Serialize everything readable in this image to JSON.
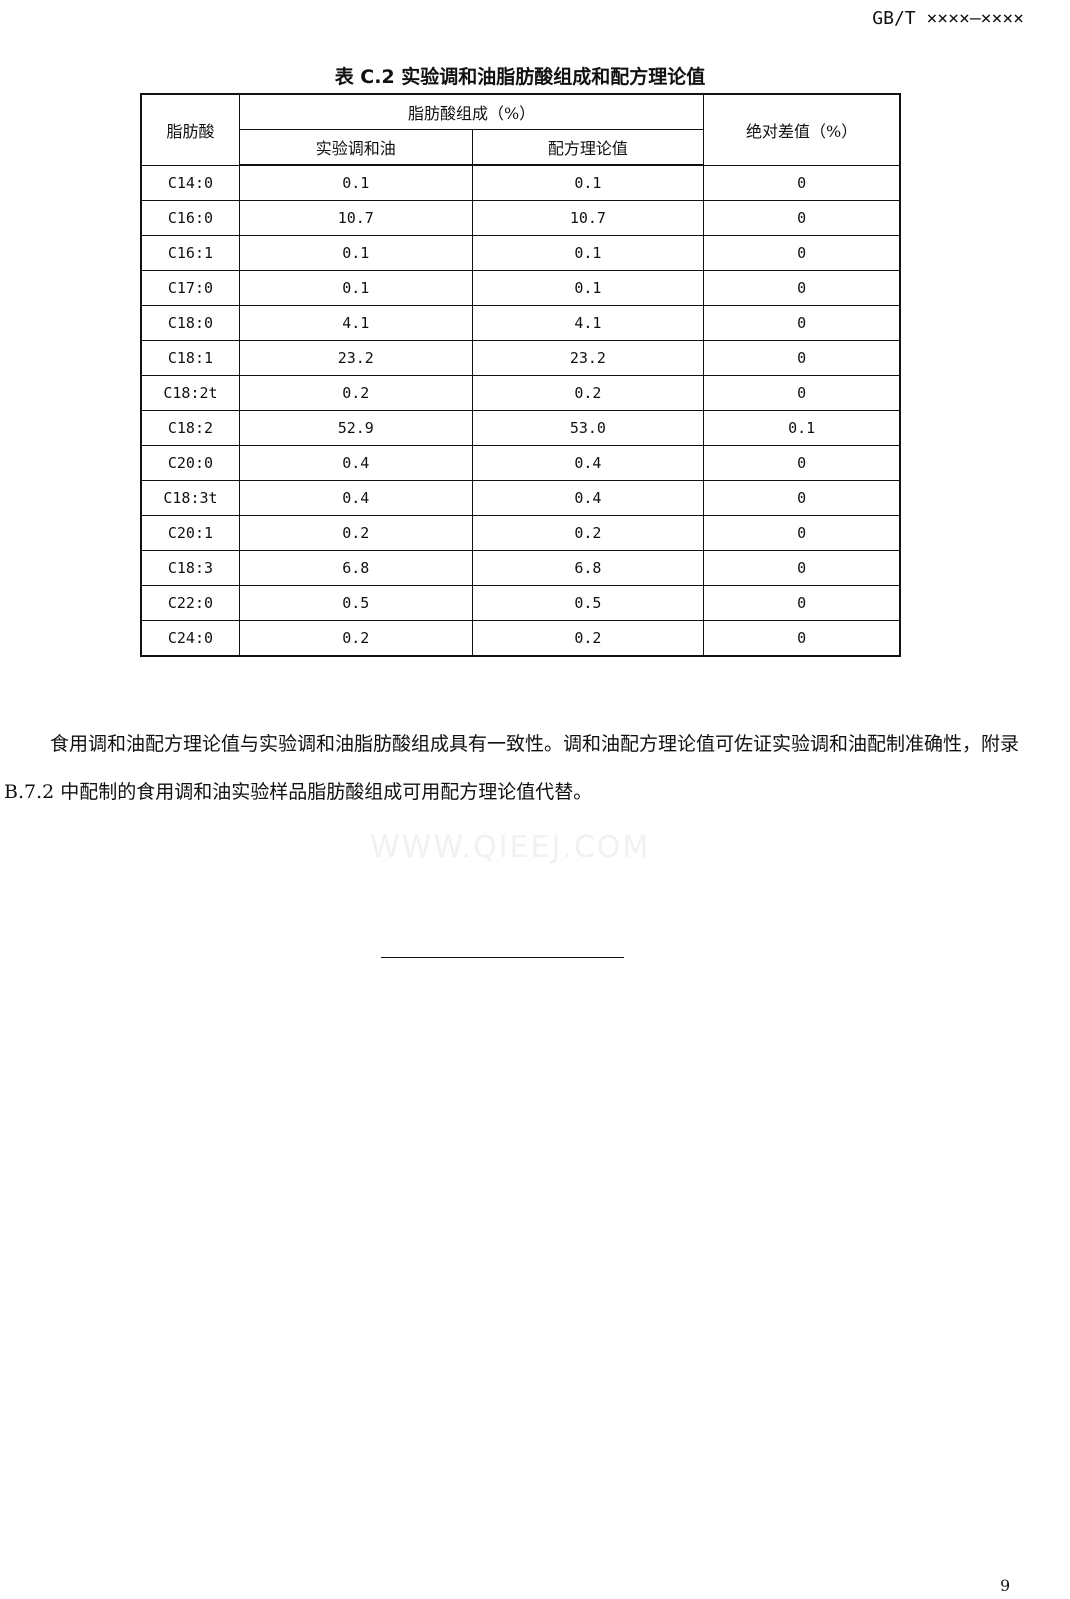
{
  "header": {
    "code": "GB/T ××××—××××"
  },
  "table": {
    "title": "表 C.2 实验调和油脂肪酸组成和配方理论值",
    "headers": {
      "fatty_acid": "脂肪酸",
      "composition": "脂肪酸组成（%）",
      "experimental": "实验调和油",
      "theoretical": "配方理论值",
      "abs_diff": "绝对差值（%）"
    },
    "rows": [
      [
        "C14:0",
        "0.1",
        "0.1",
        "0"
      ],
      [
        "C16:0",
        "10.7",
        "10.7",
        "0"
      ],
      [
        "C16:1",
        "0.1",
        "0.1",
        "0"
      ],
      [
        "C17:0",
        "0.1",
        "0.1",
        "0"
      ],
      [
        "C18:0",
        "4.1",
        "4.1",
        "0"
      ],
      [
        "C18:1",
        "23.2",
        "23.2",
        "0"
      ],
      [
        "C18:2t",
        "0.2",
        "0.2",
        "0"
      ],
      [
        "C18:2",
        "52.9",
        "53.0",
        "0.1"
      ],
      [
        "C20:0",
        "0.4",
        "0.4",
        "0"
      ],
      [
        "C18:3t",
        "0.4",
        "0.4",
        "0"
      ],
      [
        "C20:1",
        "0.2",
        "0.2",
        "0"
      ],
      [
        "C18:3",
        "6.8",
        "6.8",
        "0"
      ],
      [
        "C22:0",
        "0.5",
        "0.5",
        "0"
      ],
      [
        "C24:0",
        "0.2",
        "0.2",
        "0"
      ]
    ]
  },
  "body": {
    "paragraph": "食用调和油配方理论值与实验调和油脂肪酸组成具有一致性。调和油配方理论值可佐证实验调和油配制准确性，附录 B.7.2 中配制的食用调和油实验样品脂肪酸组成可用配方理论值代替。"
  },
  "watermark": "WWW.QIEEJ.COM",
  "footer": {
    "page_number": "9"
  }
}
